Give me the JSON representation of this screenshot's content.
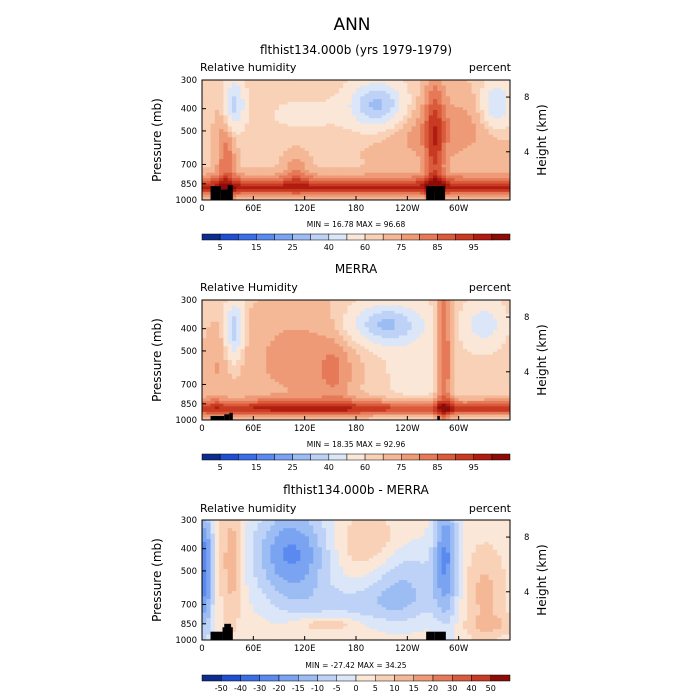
{
  "page_title": "ANN",
  "panels": [
    {
      "title": "flthist134.000b (yrs 1979-1979)",
      "left_label": "Relative humidity",
      "right_label": "percent",
      "ylabel": "Pressure (mb)",
      "y2label": "Height (km)",
      "minmax": "MIN =   16.78   MAX =   96.68",
      "colorbar_ticks": [
        "5",
        "15",
        "25",
        "40",
        "60",
        "75",
        "85",
        "95"
      ]
    },
    {
      "title": "MERRA",
      "left_label": "Relative Humidity",
      "right_label": "percent",
      "ylabel": "Pressure (mb)",
      "y2label": "Height (km)",
      "minmax": "MIN =   18.35   MAX =   92.96",
      "colorbar_ticks": [
        "5",
        "15",
        "25",
        "40",
        "60",
        "75",
        "85",
        "95"
      ]
    },
    {
      "title": "flthist134.000b - MERRA",
      "left_label": "Relative humidity",
      "right_label": "percent",
      "ylabel": "Pressure (mb)",
      "y2label": "Height (km)",
      "minmax": "MIN =  -27.42   MAX =   34.25",
      "colorbar_ticks": [
        "-50",
        "-40",
        "-30",
        "-20",
        "-15",
        "-10",
        "-5",
        "0",
        "5",
        "10",
        "15",
        "20",
        "30",
        "40",
        "50"
      ]
    }
  ],
  "chart_data": [
    {
      "type": "heatmap",
      "title": "flthist134.000b (yrs 1979-1979)",
      "variable": "Relative humidity",
      "units": "percent",
      "min": 16.78,
      "max": 96.68,
      "x_ticks": [
        "0",
        "60E",
        "120E",
        "180",
        "120W",
        "60W"
      ],
      "y_ticks": [
        "300",
        "400",
        "500",
        "700",
        "850",
        "1000"
      ],
      "y2_ticks": [
        "8",
        "4"
      ],
      "ylim": [
        1000,
        300
      ],
      "field": "model",
      "levels": [
        5,
        10,
        15,
        20,
        25,
        30,
        40,
        50,
        60,
        65,
        70,
        75,
        80,
        85,
        90,
        95
      ],
      "colors": [
        "#0d2d8c",
        "#1f4fd1",
        "#3a6ee6",
        "#5a8af0",
        "#7aa4f2",
        "#9cbcf4",
        "#bdd2f6",
        "#dbe6f8",
        "#fbe7d8",
        "#f8d1b7",
        "#f4b897",
        "#ee9a76",
        "#e67a58",
        "#da5a3c",
        "#c83a22",
        "#b01c10",
        "#8c0d08"
      ]
    },
    {
      "type": "heatmap",
      "title": "MERRA",
      "variable": "Relative Humidity",
      "units": "percent",
      "min": 18.35,
      "max": 92.96,
      "x_ticks": [
        "0",
        "60E",
        "120E",
        "180",
        "120W",
        "60W"
      ],
      "y_ticks": [
        "300",
        "400",
        "500",
        "700",
        "850",
        "1000"
      ],
      "y2_ticks": [
        "8",
        "4"
      ],
      "ylim": [
        1000,
        300
      ],
      "field": "merra",
      "levels": [
        5,
        10,
        15,
        20,
        25,
        30,
        40,
        50,
        60,
        65,
        70,
        75,
        80,
        85,
        90,
        95
      ],
      "colors": [
        "#0d2d8c",
        "#1f4fd1",
        "#3a6ee6",
        "#5a8af0",
        "#7aa4f2",
        "#9cbcf4",
        "#bdd2f6",
        "#dbe6f8",
        "#fbe7d8",
        "#f8d1b7",
        "#f4b897",
        "#ee9a76",
        "#e67a58",
        "#da5a3c",
        "#c83a22",
        "#b01c10",
        "#8c0d08"
      ]
    },
    {
      "type": "heatmap",
      "title": "flthist134.000b - MERRA",
      "variable": "Relative humidity",
      "units": "percent",
      "min": -27.42,
      "max": 34.25,
      "x_ticks": [
        "0",
        "60E",
        "120E",
        "180",
        "120W",
        "60W"
      ],
      "y_ticks": [
        "300",
        "400",
        "500",
        "700",
        "850",
        "1000"
      ],
      "y2_ticks": [
        "8",
        "4"
      ],
      "ylim": [
        1000,
        300
      ],
      "field": "diff",
      "levels": [
        -50,
        -40,
        -30,
        -20,
        -15,
        -10,
        -5,
        0,
        5,
        10,
        15,
        20,
        30,
        40,
        50
      ],
      "colors": [
        "#0d2d8c",
        "#1f4fd1",
        "#3a6ee6",
        "#5a8af0",
        "#7aa4f2",
        "#9cbcf4",
        "#bdd2f6",
        "#dbe6f8",
        "#fbe7d8",
        "#f8d1b7",
        "#f4b897",
        "#ee9a76",
        "#e67a58",
        "#da5a3c",
        "#c83a22",
        "#8c0d08"
      ]
    }
  ]
}
